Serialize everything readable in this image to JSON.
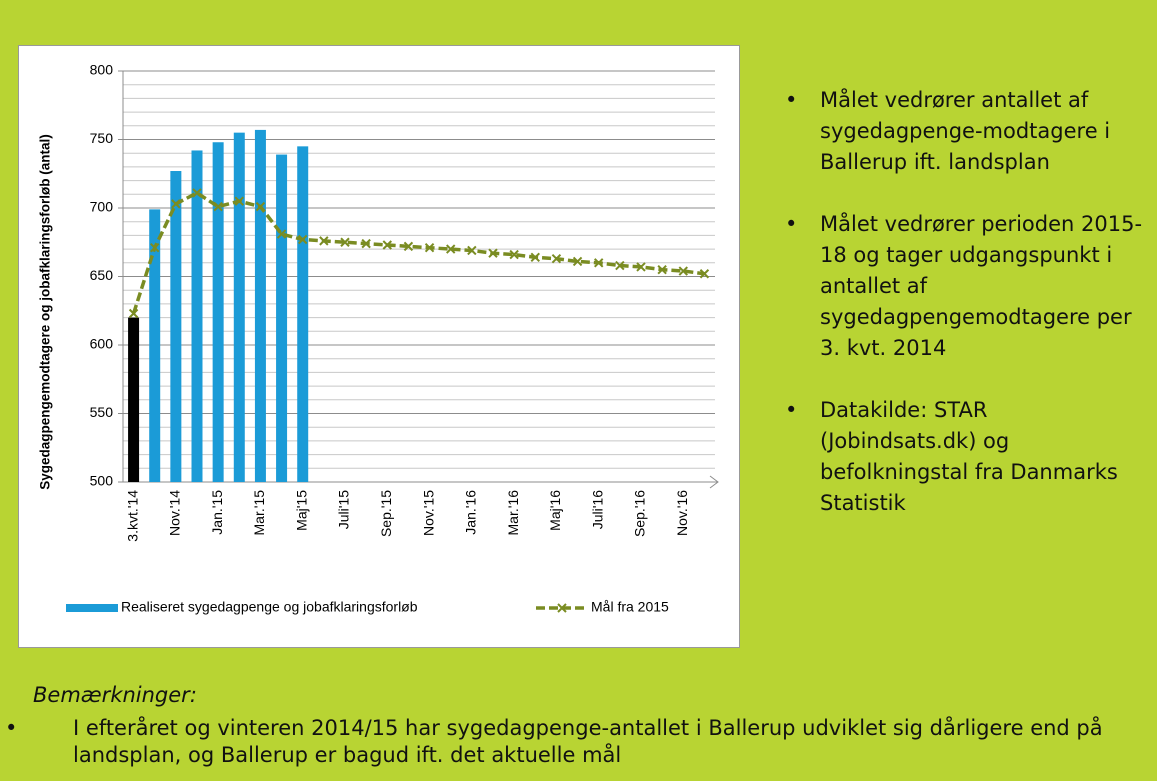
{
  "chart_data": {
    "type": "bar_line",
    "y_label": "Sygedagpengemodtagere og jobafklaringsforløb (antal)",
    "categories": [
      "3.kvt.'14",
      null,
      "Nov.'14",
      null,
      "Jan.'15",
      null,
      "Mar.'15",
      null,
      "Maj'15",
      null,
      "Juli'15",
      null,
      "Sep.'15",
      null,
      "Nov.'15",
      null,
      "Jan.'16",
      null,
      "Mar.'16",
      null,
      "Maj'16",
      null,
      "Juli'16",
      null,
      "Sep.'16",
      null,
      "Nov.'16",
      null
    ],
    "series": [
      {
        "name": "Realiseret sygedagpenge og jobafklaringsforløb",
        "type": "bar",
        "color": "#1b9bd7",
        "colors": [
          "#000000",
          "#1b9bd7",
          "#1b9bd7",
          "#1b9bd7",
          "#1b9bd7",
          "#1b9bd7",
          "#1b9bd7",
          "#1b9bd7",
          "#1b9bd7"
        ],
        "values": [
          620,
          699,
          727,
          742,
          748,
          755,
          757,
          739,
          745,
          null,
          null,
          null,
          null,
          null,
          null,
          null,
          null,
          null,
          null,
          null,
          null,
          null,
          null,
          null,
          null,
          null,
          null,
          null
        ]
      },
      {
        "name": "Mål fra 2015",
        "type": "line",
        "color": "#7a8c22",
        "values": [
          623,
          671,
          703,
          711,
          701,
          705,
          701,
          681,
          677,
          676,
          675,
          674,
          673,
          672,
          671,
          670,
          669,
          667,
          666,
          664,
          663,
          661,
          660,
          658,
          657,
          655,
          654,
          652
        ]
      }
    ],
    "ylim": [
      500,
      800
    ],
    "yticks": [
      500,
      550,
      600,
      650,
      700,
      750,
      800
    ],
    "yminorticks": [
      510,
      520,
      530,
      540,
      560,
      570,
      580,
      590,
      610,
      620,
      630,
      640,
      660,
      670,
      680,
      690,
      710,
      720,
      730,
      740,
      760,
      770,
      780,
      790
    ],
    "grid": true,
    "legend": "bottom"
  },
  "bullets": [
    "Målet vedrører antallet af sygedagpenge-modtagere i Ballerup ift. landsplan",
    "Målet vedrører perioden 2015-18 og tager udgangspunkt i antallet af sygedagpengemodtagere per 3. kvt. 2014",
    "Datakilde: STAR (Jobindsats.dk) og befolkningstal fra Danmarks Statistik"
  ],
  "remarks": {
    "heading": "Bemærkninger:",
    "items": [
      "I efteråret og vinteren 2014/15 har sygedagpenge-antallet i Ballerup udviklet sig dårligere end på landsplan, og Ballerup er bagud ift. det aktuelle mål"
    ]
  }
}
